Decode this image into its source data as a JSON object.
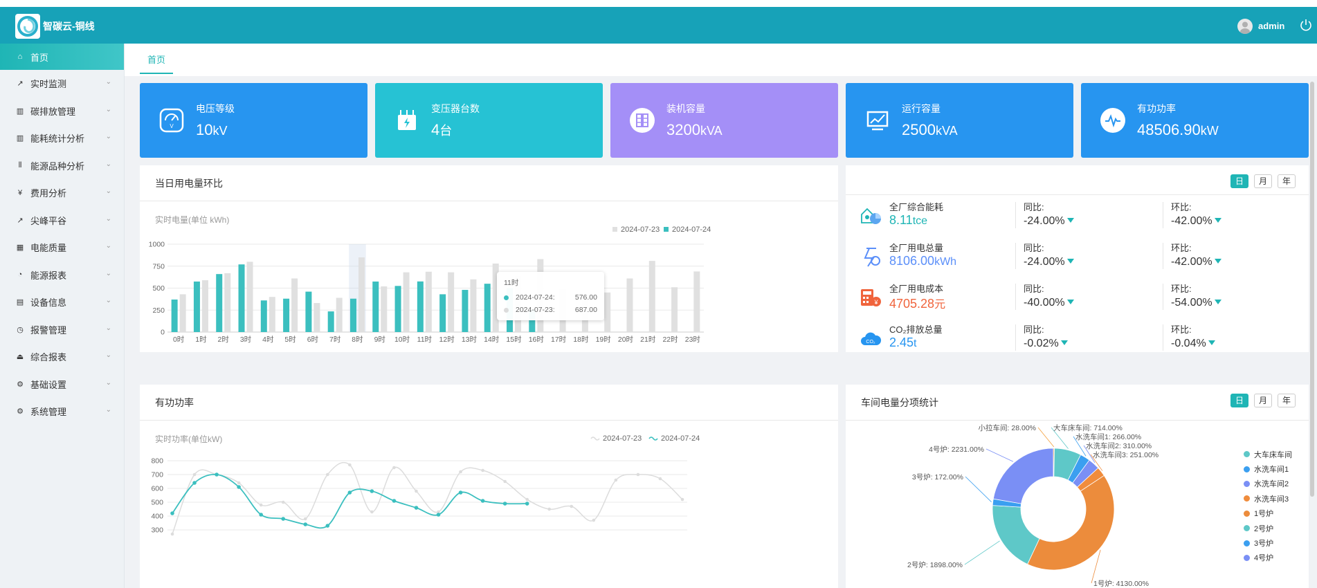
{
  "app": {
    "title": "智碳云-铜线",
    "user": "admin"
  },
  "sidebar": {
    "items": [
      {
        "label": "首页",
        "icon": "home-icon"
      },
      {
        "label": "实时监测",
        "icon": "trend-icon"
      },
      {
        "label": "碳排放管理",
        "icon": "bar-chart-icon"
      },
      {
        "label": "能耗统计分析",
        "icon": "bar-chart-icon"
      },
      {
        "label": "能源品种分析",
        "icon": "sliders-icon"
      },
      {
        "label": "费用分析",
        "icon": "yen-icon"
      },
      {
        "label": "尖峰平谷",
        "icon": "trend-icon"
      },
      {
        "label": "电能质量",
        "icon": "grid-icon"
      },
      {
        "label": "能源报表",
        "icon": "pie-icon"
      },
      {
        "label": "设备信息",
        "icon": "document-icon"
      },
      {
        "label": "报警管理",
        "icon": "alarm-icon"
      },
      {
        "label": "综合报表",
        "icon": "bank-icon"
      },
      {
        "label": "基础设置",
        "icon": "gear-icon"
      },
      {
        "label": "系统管理",
        "icon": "gear-icon"
      }
    ]
  },
  "tabs": {
    "home": "首页"
  },
  "cards": [
    {
      "label": "电压等级",
      "value": "10",
      "unit": "kV",
      "color": "#2795f0"
    },
    {
      "label": "变压器台数",
      "value": "4",
      "unit": "台",
      "color": "#26c2d4"
    },
    {
      "label": "装机容量",
      "value": "3200",
      "unit": "kVA",
      "color": "#a48ff7"
    },
    {
      "label": "运行容量",
      "value": "2500",
      "unit": "kVA",
      "color": "#2795f0"
    },
    {
      "label": "有功功率",
      "value": "48506.90",
      "unit": "kW",
      "color": "#2795f0"
    }
  ],
  "daily_panel": {
    "title": "当日用电量环比",
    "sublabel": "实时电量(单位 kWh)",
    "tooltip": {
      "title": "11时",
      "rows": [
        {
          "label": "2024-07-24:",
          "value": "576.00"
        },
        {
          "label": "2024-07-23:",
          "value": "687.00"
        }
      ]
    }
  },
  "stats_panel": {
    "buttons": [
      "日",
      "月",
      "年"
    ],
    "rows": [
      {
        "name": "全厂综合能耗",
        "value": "8.11",
        "unit": "tce",
        "color": "#1fb5b5",
        "yoy_label": "同比:",
        "yoy": "-24.00%",
        "mom_label": "环比:",
        "mom": "-42.00%",
        "icon": "energy-icon"
      },
      {
        "name": "全厂用电总量",
        "value": "8106.00",
        "unit": "kWh",
        "color": "#5b8ff9",
        "yoy_label": "同比:",
        "yoy": "-24.00%",
        "mom_label": "环比:",
        "mom": "-42.00%",
        "icon": "electricity-icon"
      },
      {
        "name": "全厂用电成本",
        "value": "4705.28",
        "unit": "元",
        "color": "#f0643c",
        "yoy_label": "同比:",
        "yoy": "-40.00%",
        "mom_label": "环比:",
        "mom": "-54.00%",
        "icon": "calculator-icon"
      },
      {
        "name": "CO₂排放总量",
        "value": "2.45",
        "unit": "t",
        "color": "#2795f0",
        "yoy_label": "同比:",
        "yoy": "-0.02%",
        "mom_label": "环比:",
        "mom": "-0.04%",
        "icon": "co2-icon"
      }
    ]
  },
  "power_panel": {
    "title": "有功功率",
    "sublabel": "实时功率(单位kW)"
  },
  "workshop_panel": {
    "title": "车间电量分项统计",
    "buttons": [
      "日",
      "月",
      "年"
    ]
  },
  "chart_data": [
    {
      "type": "bar",
      "categories": [
        "0时",
        "1时",
        "2时",
        "3时",
        "4时",
        "5时",
        "6时",
        "7时",
        "8时",
        "9时",
        "10时",
        "11时",
        "12时",
        "13时",
        "14时",
        "15时",
        "16时",
        "17时",
        "18时",
        "19时",
        "20时",
        "21时",
        "22时",
        "23时"
      ],
      "series": [
        {
          "name": "2024-07-23",
          "color": "#e0e0e0",
          "values": [
            430,
            590,
            670,
            800,
            400,
            610,
            330,
            390,
            850,
            520,
            680,
            687,
            680,
            600,
            780,
            640,
            830,
            490,
            360,
            450,
            610,
            810,
            510,
            690
          ]
        },
        {
          "name": "2024-07-24",
          "color": "#3bbfbf",
          "values": [
            370,
            575,
            660,
            770,
            360,
            380,
            460,
            235,
            380,
            575,
            525,
            576,
            430,
            480,
            550,
            500,
            250,
            null,
            null,
            null,
            null,
            null,
            null,
            null
          ]
        }
      ],
      "ylabel": "实时电量(单位 kWh)",
      "ylim": [
        0,
        1000
      ],
      "yticks": [
        0,
        250,
        500,
        750,
        1000
      ],
      "highlight_category": "8时"
    },
    {
      "type": "line",
      "x": [
        0,
        1,
        2,
        3,
        4,
        5,
        6,
        7,
        8,
        9,
        10,
        11,
        12,
        13,
        14,
        15,
        16,
        17,
        18,
        19,
        20,
        21,
        22,
        23
      ],
      "series": [
        {
          "name": "2024-07-23",
          "color": "#dcdcdc",
          "values": [
            270,
            700,
            700,
            640,
            480,
            500,
            380,
            700,
            770,
            430,
            750,
            580,
            430,
            720,
            730,
            650,
            520,
            450,
            470,
            370,
            660,
            700,
            670,
            520
          ]
        },
        {
          "name": "2024-07-24",
          "color": "#3bbfbf",
          "values": [
            420,
            640,
            700,
            610,
            410,
            380,
            340,
            330,
            570,
            580,
            510,
            460,
            410,
            570,
            510,
            490,
            490,
            null,
            null,
            null,
            null,
            null,
            null,
            null
          ]
        }
      ],
      "ylabel": "实时功率(单位kW)",
      "ylim": [
        300,
        800
      ],
      "yticks": [
        300,
        400,
        500,
        600,
        700,
        800
      ]
    },
    {
      "type": "pie",
      "legend": [
        "大车床车间",
        "水洗车间1",
        "水洗车间2",
        "水洗车间3",
        "1号炉",
        "2号炉",
        "3号炉",
        "4号炉"
      ],
      "legend_colors": [
        "#5ec8c8",
        "#3b9ff0",
        "#7a8ff5",
        "#f08c3c",
        "#ec8c3c",
        "#5ec8c8",
        "#3b9ff0",
        "#7a8ff5"
      ],
      "slices": [
        {
          "label": "小拉车间",
          "value": 28.0,
          "color": "#f4a03c"
        },
        {
          "label": "大车床车间",
          "value": 714.0,
          "color": "#5ec8c8"
        },
        {
          "label": "水洗车间1",
          "value": 266.0,
          "color": "#3b9ff0"
        },
        {
          "label": "水洗车间2",
          "value": 310.0,
          "color": "#7a8ff5"
        },
        {
          "label": "水洗车间3",
          "value": 251.0,
          "color": "#f08c3c"
        },
        {
          "label": "1号炉",
          "value": 4130.0,
          "color": "#ec8c3c"
        },
        {
          "label": "2号炉",
          "value": 1898.0,
          "color": "#5ec8c8"
        },
        {
          "label": "3号炉",
          "value": 172.0,
          "color": "#3b9ff0"
        },
        {
          "label": "4号炉",
          "value": 2231.0,
          "color": "#7a8ff5"
        }
      ],
      "labels": [
        "小拉车间: 28.00%",
        "大车床车间: 714.00%",
        "水洗车间1: 266.00%",
        "水洗车间2: 310.00%",
        "水洗车间3: 251.00%",
        "1号炉: 4130.00%",
        "2号炉: 1898.00%",
        "3号炉: 172.00%",
        "4号炉: 2231.00%"
      ]
    }
  ]
}
